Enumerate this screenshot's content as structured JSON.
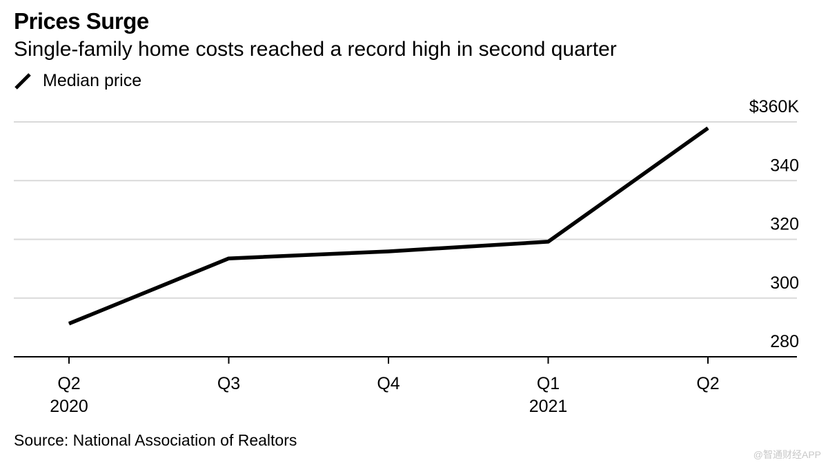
{
  "colors": {
    "line": "#000000",
    "grid": "#d9d9d9",
    "axis": "#000000",
    "background": "#ffffff"
  },
  "chart_data": {
    "type": "line",
    "title": "Prices Surge",
    "subtitle": "Single-family home costs reached a record high in second quarter",
    "categories": [
      "Q2",
      "Q3",
      "Q4",
      "Q1",
      "Q2"
    ],
    "year_labels": [
      "2020",
      "",
      "",
      "2021",
      ""
    ],
    "series": [
      {
        "name": "Median price",
        "values": [
          291.3,
          313.5,
          315.9,
          319.2,
          357.9
        ]
      }
    ],
    "y_ticks": [
      280,
      300,
      320,
      340,
      360
    ],
    "y_tick_labels": [
      "280",
      "300",
      "320",
      "340",
      "$360K"
    ],
    "ylim": [
      280,
      360
    ],
    "xlabel": "",
    "ylabel": "",
    "grid": true,
    "legend_position": "top-left",
    "source": "Source: National Association of Realtors"
  },
  "watermark": "@智通财经APP"
}
